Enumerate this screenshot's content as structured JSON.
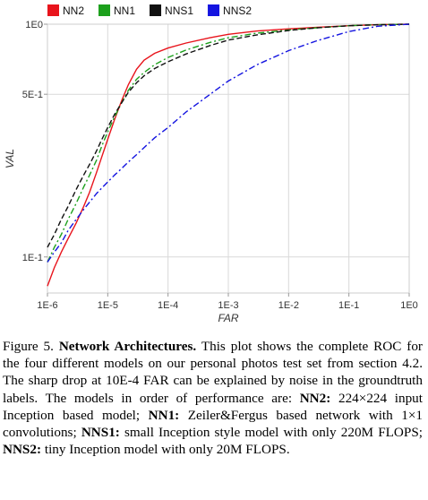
{
  "chart_data": {
    "type": "line",
    "xlabel": "FAR",
    "ylabel": "VAL",
    "x_scale": "log",
    "y_scale": "log",
    "xlim": [
      1e-06,
      1
    ],
    "ylim": [
      0.07,
      1
    ],
    "x_ticks": [
      {
        "value": 1e-06,
        "label": "1E-6"
      },
      {
        "value": 1e-05,
        "label": "1E-5"
      },
      {
        "value": 0.0001,
        "label": "1E-4"
      },
      {
        "value": 0.001,
        "label": "1E-3"
      },
      {
        "value": 0.01,
        "label": "1E-2"
      },
      {
        "value": 0.1,
        "label": "1E-1"
      },
      {
        "value": 1,
        "label": "1E0"
      }
    ],
    "y_ticks": [
      {
        "value": 0.1,
        "label": "1E-1"
      },
      {
        "value": 0.5,
        "label": "5E-1"
      },
      {
        "value": 1,
        "label": "1E0"
      }
    ],
    "grid": true,
    "legend_position": "top",
    "series": [
      {
        "name": "NN2",
        "color": "#e8141c",
        "dash": "solid",
        "x": [
          1e-06,
          1.3e-06,
          1.7e-06,
          2.2e-06,
          3e-06,
          4e-06,
          5e-06,
          6.5e-06,
          8e-06,
          1e-05,
          1.3e-05,
          1.7e-05,
          2.2e-05,
          3e-05,
          4e-05,
          6e-05,
          0.0001,
          0.0002,
          0.0005,
          0.001,
          0.003,
          0.01,
          0.03,
          0.1,
          0.3,
          1
        ],
        "y": [
          0.075,
          0.09,
          0.105,
          0.12,
          0.14,
          0.165,
          0.19,
          0.23,
          0.27,
          0.32,
          0.39,
          0.47,
          0.55,
          0.64,
          0.7,
          0.75,
          0.79,
          0.83,
          0.875,
          0.905,
          0.935,
          0.955,
          0.97,
          0.985,
          0.995,
          1.0
        ]
      },
      {
        "name": "NN1",
        "color": "#1ca01c",
        "dash": "dashdot",
        "x": [
          1e-06,
          1.3e-06,
          1.7e-06,
          2.2e-06,
          3e-06,
          4e-06,
          5e-06,
          6.5e-06,
          8e-06,
          1e-05,
          1.3e-05,
          1.7e-05,
          2.2e-05,
          3e-05,
          4e-05,
          6e-05,
          0.0001,
          0.0002,
          0.0005,
          0.001,
          0.003,
          0.01,
          0.03,
          0.1,
          0.3,
          1
        ],
        "y": [
          0.095,
          0.11,
          0.125,
          0.145,
          0.17,
          0.2,
          0.225,
          0.26,
          0.3,
          0.345,
          0.4,
          0.46,
          0.52,
          0.58,
          0.62,
          0.67,
          0.72,
          0.775,
          0.835,
          0.875,
          0.915,
          0.945,
          0.965,
          0.985,
          0.995,
          1.0
        ]
      },
      {
        "name": "NNS1",
        "color": "#111111",
        "dash": "dashed",
        "x": [
          1e-06,
          1.3e-06,
          1.7e-06,
          2.2e-06,
          3e-06,
          4e-06,
          5e-06,
          6.5e-06,
          8e-06,
          1e-05,
          1.3e-05,
          1.7e-05,
          2.2e-05,
          3e-05,
          4e-05,
          6e-05,
          0.0001,
          0.0002,
          0.0005,
          0.001,
          0.003,
          0.01,
          0.03,
          0.1,
          0.3,
          1
        ],
        "y": [
          0.11,
          0.125,
          0.145,
          0.165,
          0.195,
          0.225,
          0.25,
          0.285,
          0.32,
          0.36,
          0.41,
          0.46,
          0.51,
          0.56,
          0.6,
          0.645,
          0.69,
          0.745,
          0.81,
          0.855,
          0.9,
          0.94,
          0.965,
          0.985,
          0.995,
          1.0
        ]
      },
      {
        "name": "NNS2",
        "color": "#1414e0",
        "dash": "dashdot",
        "x": [
          1e-06,
          1.3e-06,
          1.7e-06,
          2.2e-06,
          3e-06,
          4e-06,
          5e-06,
          6.5e-06,
          8e-06,
          1e-05,
          1.3e-05,
          1.7e-05,
          2.2e-05,
          3e-05,
          4e-05,
          6e-05,
          0.0001,
          0.0002,
          0.0005,
          0.001,
          0.003,
          0.01,
          0.03,
          0.1,
          0.3,
          1
        ],
        "y": [
          0.095,
          0.105,
          0.115,
          0.13,
          0.145,
          0.16,
          0.172,
          0.187,
          0.198,
          0.21,
          0.225,
          0.24,
          0.256,
          0.275,
          0.295,
          0.325,
          0.36,
          0.42,
          0.5,
          0.57,
          0.67,
          0.77,
          0.85,
          0.93,
          0.98,
          1.0
        ]
      }
    ]
  },
  "caption": {
    "label": "Figure 5. ",
    "heading": "Network Architectures.",
    "text1": " This plot shows the complete ROC for the four different models on our personal photos test set from section 4.2. The sharp drop at 10E-4 FAR can be explained by noise in the groundtruth labels. The models in order of performance are: ",
    "nn2_name": "NN2:",
    "nn2_desc": " 224×224 input Inception based model; ",
    "nn1_name": "NN1:",
    "nn1_desc": " Zeiler&Fergus based network with 1×1 convolutions; ",
    "nns1_name": "NNS1:",
    "nns1_desc": " small Inception style model with only 220M FLOPS; ",
    "nns2_name": "NNS2:",
    "nns2_desc": " tiny Inception model with only 20M FLOPS."
  }
}
